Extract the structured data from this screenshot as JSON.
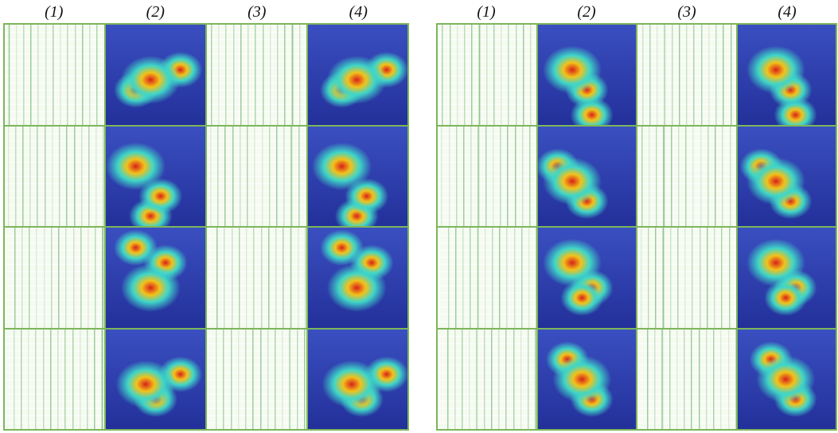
{
  "panels": [
    {
      "headers": [
        "(1)",
        "(2)",
        "(3)",
        "(4)"
      ]
    },
    {
      "headers": [
        "(1)",
        "(2)",
        "(3)",
        "(4)"
      ]
    }
  ]
}
